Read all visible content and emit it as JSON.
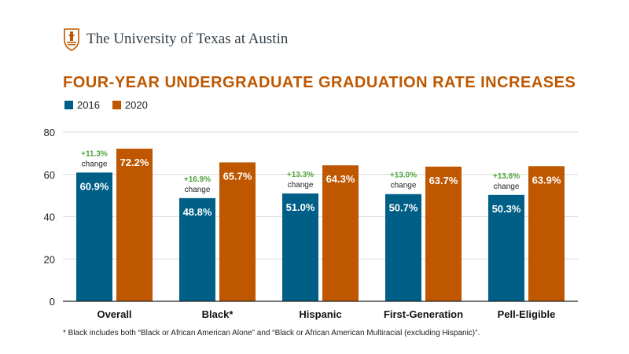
{
  "header": {
    "institution": "The University of Texas at Austin",
    "logo_icon": "ut-tower-shield-icon"
  },
  "colors": {
    "brand_orange": "#bf5700",
    "series_2016": "#005f86",
    "series_2020": "#bf5700",
    "change_label": "#4ea53a",
    "gridline": "#d9d9d9"
  },
  "footnote": "* Black includes both “Black or African American Alone” and “Black or African American Multiracial (excluding Hispanic)”.",
  "chart_data": {
    "type": "bar",
    "title": "FOUR-YEAR UNDERGRADUATE GRADUATION RATE INCREASES",
    "xlabel": "",
    "ylabel": "",
    "ylim": [
      0,
      80
    ],
    "yticks": [
      0,
      20,
      40,
      60,
      80
    ],
    "grid": true,
    "legend_position": "top-left",
    "categories": [
      "Overall",
      "Black*",
      "Hispanic",
      "First-Generation",
      "Pell-Eligible"
    ],
    "series": [
      {
        "name": "2016",
        "values": [
          60.9,
          48.8,
          51.0,
          50.7,
          50.3
        ],
        "labels": [
          "60.9%",
          "48.8%",
          "51.0%",
          "50.7%",
          "50.3%"
        ]
      },
      {
        "name": "2020",
        "values": [
          72.2,
          65.7,
          64.3,
          63.7,
          63.9
        ],
        "labels": [
          "72.2%",
          "65.7%",
          "64.3%",
          "63.7%",
          "63.9%"
        ]
      }
    ],
    "change_annotations": [
      "+11.3%",
      "+16.9%",
      "+13.3%",
      "+13.0%",
      "+13.6%"
    ],
    "change_word": "change"
  }
}
